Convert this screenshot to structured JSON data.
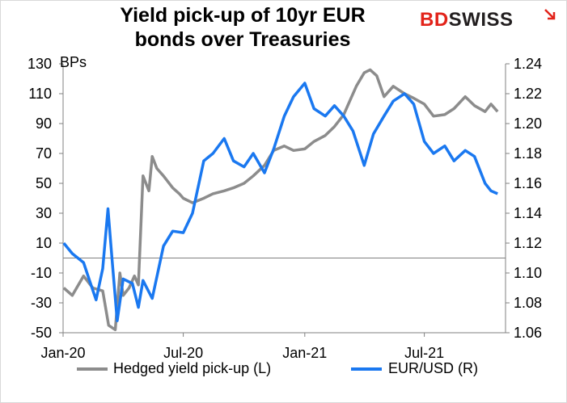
{
  "header": {
    "title_line1": "Yield pick-up of 10yr EUR",
    "title_line2": "bonds  over Treasuries",
    "logo_part1": "BD",
    "logo_part2": "SWISS"
  },
  "colors": {
    "hedged": "#8c8c8c",
    "eurusd": "#1a78f0",
    "brand_red": "#e2231a"
  },
  "chart_data": {
    "type": "line",
    "title": "Yield pick-up of 10yr EUR bonds  over Treasuries",
    "left_axis": {
      "unit_label": "BPs",
      "range": [
        -50,
        130
      ],
      "ticks": [
        130,
        110,
        90,
        70,
        50,
        30,
        10,
        -10,
        -30,
        -50
      ]
    },
    "right_axis": {
      "range": [
        1.06,
        1.24
      ],
      "ticks": [
        "1.24",
        "1.22",
        "1.20",
        "1.18",
        "1.16",
        "1.14",
        "1.12",
        "1.10",
        "1.08",
        "1.06"
      ]
    },
    "x_axis": {
      "range": [
        "2020-01-01",
        "2021-11-01"
      ],
      "ticks": [
        "Jan-20",
        "Jul-20",
        "Jan-21",
        "Jul-21"
      ]
    },
    "reference_line_left": 0,
    "series": [
      {
        "name": "Hedged yield pick-up (L)",
        "axis": "left",
        "points": [
          [
            "2020-01-02",
            -20
          ],
          [
            "2020-01-15",
            -25
          ],
          [
            "2020-02-01",
            -12
          ],
          [
            "2020-02-15",
            -20
          ],
          [
            "2020-03-01",
            -22
          ],
          [
            "2020-03-10",
            -45
          ],
          [
            "2020-03-20",
            -48
          ],
          [
            "2020-03-27",
            -10
          ],
          [
            "2020-04-01",
            -25
          ],
          [
            "2020-04-10",
            -20
          ],
          [
            "2020-04-18",
            -12
          ],
          [
            "2020-04-24",
            -18
          ],
          [
            "2020-05-01",
            55
          ],
          [
            "2020-05-10",
            45
          ],
          [
            "2020-05-15",
            68
          ],
          [
            "2020-05-22",
            60
          ],
          [
            "2020-06-01",
            55
          ],
          [
            "2020-06-15",
            47
          ],
          [
            "2020-06-25",
            43
          ],
          [
            "2020-07-01",
            40
          ],
          [
            "2020-07-15",
            37
          ],
          [
            "2020-08-01",
            40
          ],
          [
            "2020-08-15",
            43
          ],
          [
            "2020-09-01",
            45
          ],
          [
            "2020-09-15",
            47
          ],
          [
            "2020-10-01",
            50
          ],
          [
            "2020-10-15",
            55
          ],
          [
            "2020-11-01",
            62
          ],
          [
            "2020-11-15",
            72
          ],
          [
            "2020-12-01",
            75
          ],
          [
            "2020-12-15",
            72
          ],
          [
            "2021-01-01",
            73
          ],
          [
            "2021-01-15",
            78
          ],
          [
            "2021-02-01",
            82
          ],
          [
            "2021-02-15",
            88
          ],
          [
            "2021-03-01",
            96
          ],
          [
            "2021-03-10",
            105
          ],
          [
            "2021-03-20",
            115
          ],
          [
            "2021-04-01",
            124
          ],
          [
            "2021-04-10",
            126
          ],
          [
            "2021-04-20",
            122
          ],
          [
            "2021-05-01",
            108
          ],
          [
            "2021-05-15",
            115
          ],
          [
            "2021-06-01",
            110
          ],
          [
            "2021-06-15",
            107
          ],
          [
            "2021-07-01",
            103
          ],
          [
            "2021-07-15",
            95
          ],
          [
            "2021-08-01",
            96
          ],
          [
            "2021-08-15",
            100
          ],
          [
            "2021-09-01",
            108
          ],
          [
            "2021-09-15",
            102
          ],
          [
            "2021-10-01",
            98
          ],
          [
            "2021-10-10",
            103
          ],
          [
            "2021-10-20",
            98
          ]
        ]
      },
      {
        "name": "EUR/USD (R)",
        "axis": "right",
        "points": [
          [
            "2020-01-02",
            1.12
          ],
          [
            "2020-01-15",
            1.113
          ],
          [
            "2020-02-01",
            1.107
          ],
          [
            "2020-02-10",
            1.095
          ],
          [
            "2020-02-20",
            1.082
          ],
          [
            "2020-03-01",
            1.103
          ],
          [
            "2020-03-09",
            1.143
          ],
          [
            "2020-03-15",
            1.11
          ],
          [
            "2020-03-23",
            1.068
          ],
          [
            "2020-04-01",
            1.096
          ],
          [
            "2020-04-15",
            1.093
          ],
          [
            "2020-04-24",
            1.077
          ],
          [
            "2020-05-01",
            1.095
          ],
          [
            "2020-05-15",
            1.083
          ],
          [
            "2020-06-01",
            1.118
          ],
          [
            "2020-06-15",
            1.128
          ],
          [
            "2020-07-01",
            1.127
          ],
          [
            "2020-07-15",
            1.14
          ],
          [
            "2020-08-01",
            1.175
          ],
          [
            "2020-08-15",
            1.18
          ],
          [
            "2020-09-01",
            1.19
          ],
          [
            "2020-09-15",
            1.175
          ],
          [
            "2020-10-01",
            1.171
          ],
          [
            "2020-10-15",
            1.18
          ],
          [
            "2020-11-01",
            1.167
          ],
          [
            "2020-11-15",
            1.183
          ],
          [
            "2020-12-01",
            1.205
          ],
          [
            "2020-12-15",
            1.218
          ],
          [
            "2021-01-01",
            1.227
          ],
          [
            "2021-01-15",
            1.21
          ],
          [
            "2021-02-01",
            1.205
          ],
          [
            "2021-02-15",
            1.212
          ],
          [
            "2021-03-01",
            1.205
          ],
          [
            "2021-03-15",
            1.195
          ],
          [
            "2021-04-01",
            1.172
          ],
          [
            "2021-04-15",
            1.193
          ],
          [
            "2021-05-01",
            1.205
          ],
          [
            "2021-05-15",
            1.215
          ],
          [
            "2021-06-01",
            1.22
          ],
          [
            "2021-06-15",
            1.213
          ],
          [
            "2021-07-01",
            1.188
          ],
          [
            "2021-07-15",
            1.18
          ],
          [
            "2021-08-01",
            1.185
          ],
          [
            "2021-08-15",
            1.175
          ],
          [
            "2021-09-01",
            1.182
          ],
          [
            "2021-09-15",
            1.178
          ],
          [
            "2021-10-01",
            1.16
          ],
          [
            "2021-10-10",
            1.155
          ],
          [
            "2021-10-20",
            1.153
          ]
        ]
      }
    ]
  },
  "legend": {
    "hedged_label": "Hedged yield pick-up (L)",
    "eurusd_label": "EUR/USD (R)"
  }
}
